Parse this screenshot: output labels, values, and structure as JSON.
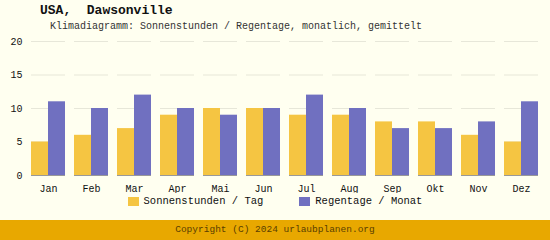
{
  "chart_data": {
    "type": "bar",
    "title": "USA,  Dawsonville",
    "subtitle": "Klimadiagramm: Sonnenstunden / Regentage, monatlich, gemittelt",
    "caption": "Copyright (C) 2024 urlaubplanen.org",
    "categories": [
      "Jan",
      "Feb",
      "Mar",
      "Apr",
      "Mai",
      "Jun",
      "Jul",
      "Aug",
      "Sep",
      "Okt",
      "Nov",
      "Dez"
    ],
    "series": [
      {
        "name": "Sonnenstunden / Tag",
        "color": "#F5C542",
        "values": [
          5,
          6,
          7,
          9,
          10,
          10,
          9,
          9,
          8,
          8,
          6,
          5
        ]
      },
      {
        "name": "Regentage / Monat",
        "color": "#7070C0",
        "values": [
          11,
          10,
          12,
          10,
          9,
          10,
          12,
          10,
          7,
          7,
          8,
          11
        ]
      }
    ],
    "ylim": [
      0,
      20
    ],
    "yticks": [
      0,
      5,
      10,
      15,
      20
    ],
    "grid": true,
    "legend": "bottom"
  }
}
